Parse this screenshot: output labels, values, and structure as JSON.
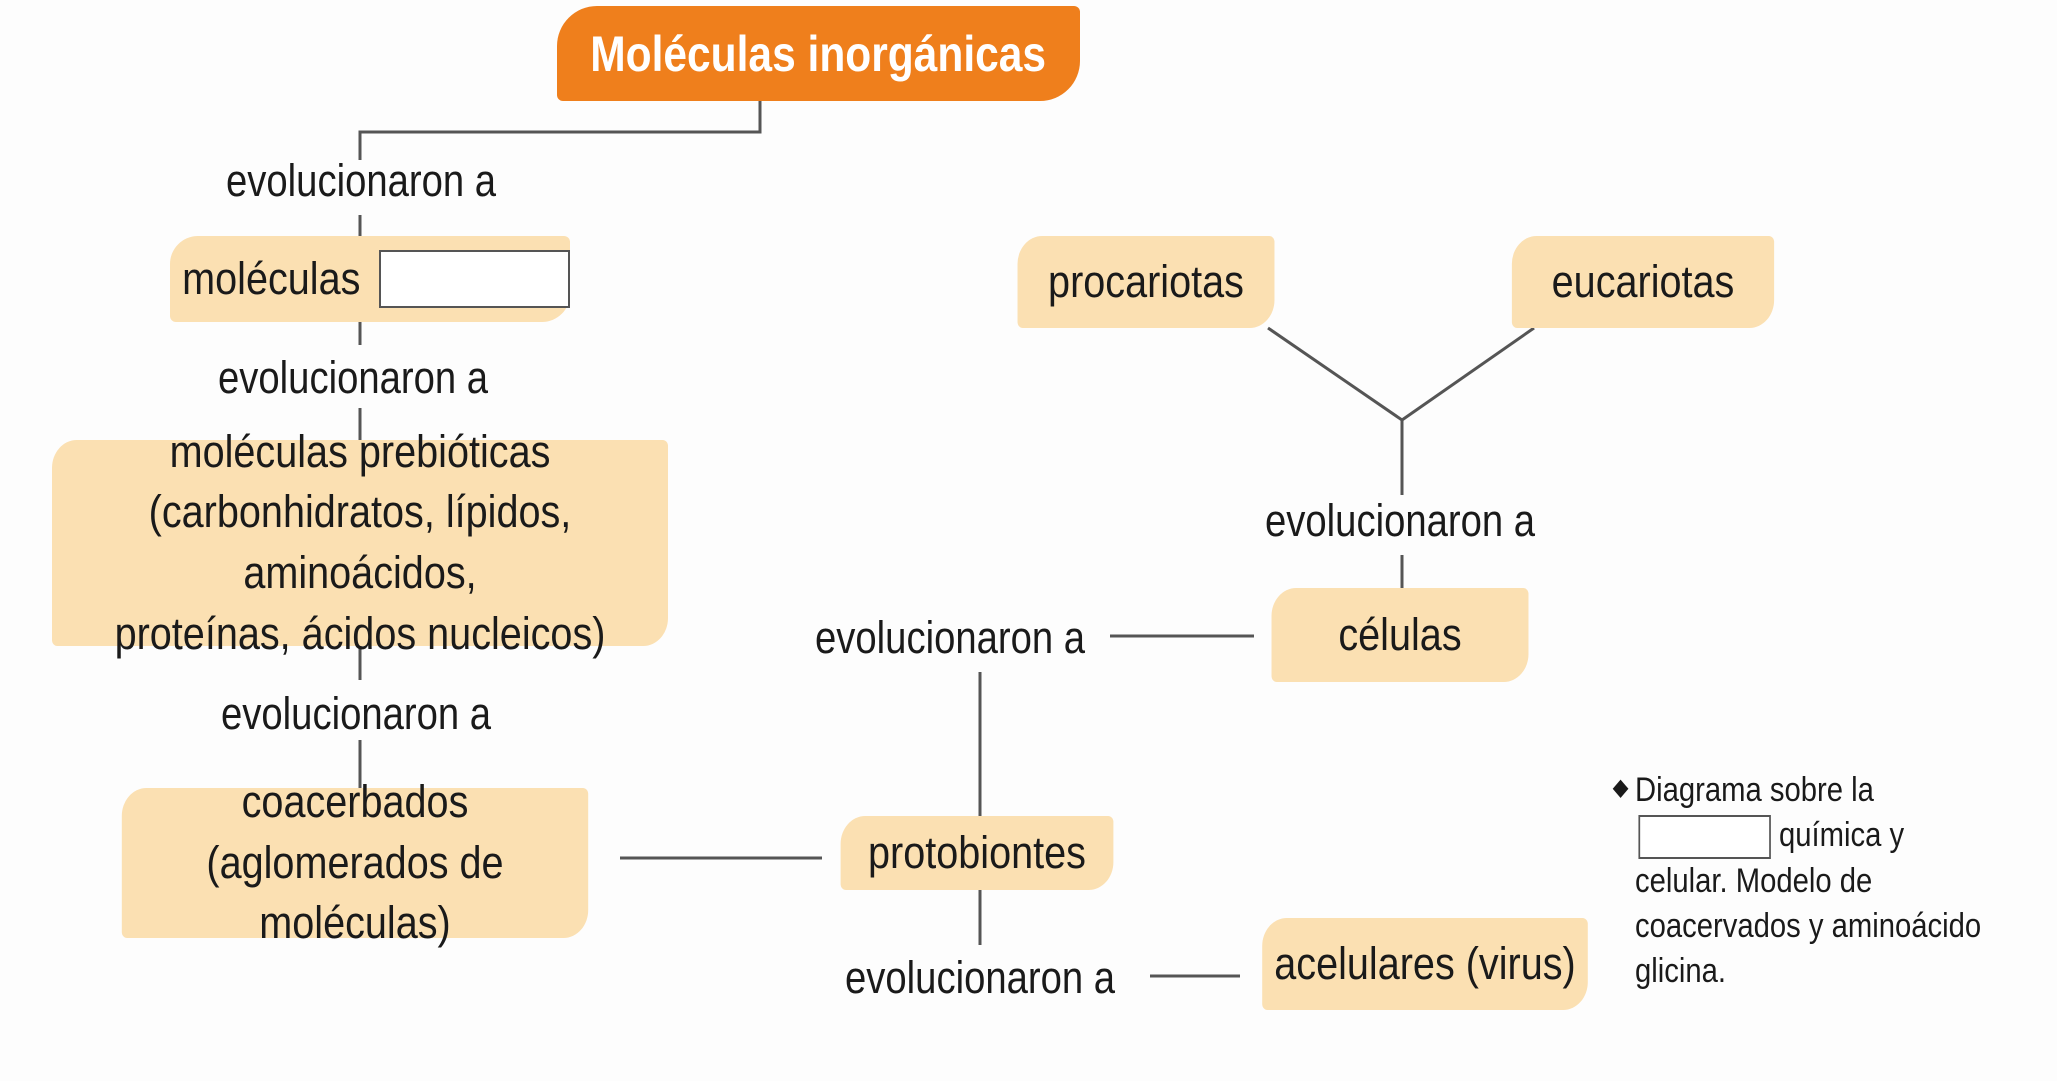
{
  "title": "Moléculas inorgánicas",
  "link_label": "evolucionaron a",
  "nodes": {
    "moleculas": "moléculas",
    "prebioticas": [
      "moléculas prebióticas",
      "(carbonhidratos, lípidos, aminoácidos,",
      "proteínas, ácidos nucleicos)"
    ],
    "coacerbados": [
      "coacerbados",
      "(aglomerados de moléculas)"
    ],
    "protobiontes": "protobiontes",
    "celulas": "células",
    "procariotas": "procariotas",
    "eucariotas": "eucariotas",
    "acelulares": "acelulares (virus)"
  },
  "caption": {
    "before_blank": "Diagrama sobre la",
    "after_blank": "química y celular. Modelo de coacervados y aminoácido glicina."
  },
  "colors": {
    "title_bg": "#ef7f1c",
    "node_bg": "#fbe0b2",
    "connector": "#555555"
  }
}
